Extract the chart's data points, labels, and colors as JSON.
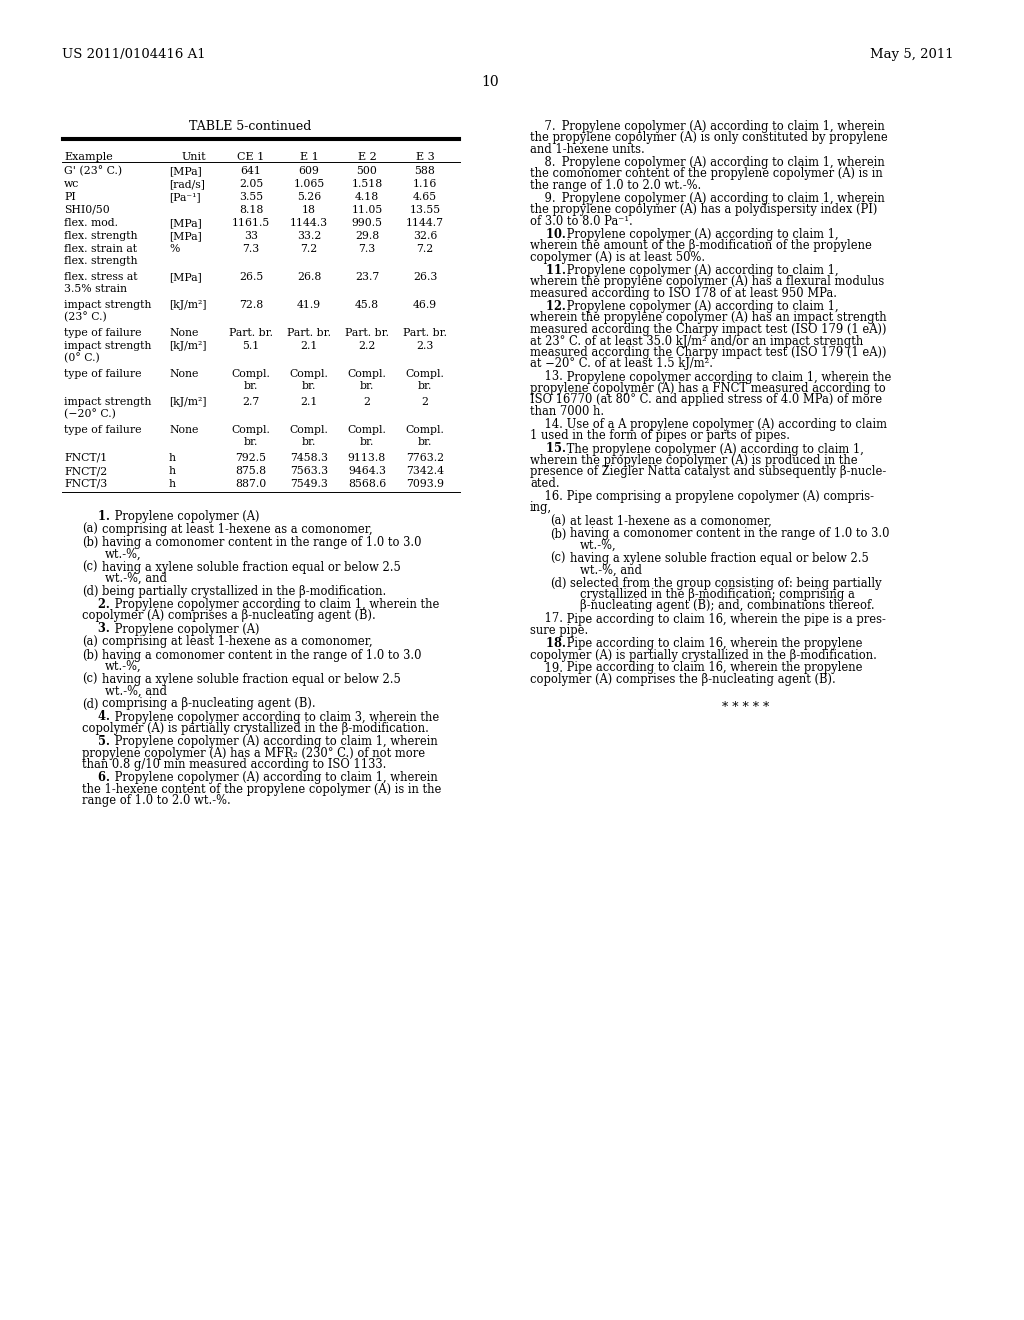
{
  "header_left": "US 2011/0104416 A1",
  "header_right": "May 5, 2011",
  "page_number": "10",
  "background_color": "#ffffff",
  "text_color": "#000000",
  "table_title": "TABLE 5-continued",
  "table_headers": [
    "Example",
    "Unit",
    "CE 1",
    "E 1",
    "E 2",
    "E 3"
  ],
  "table_rows": [
    [
      "G' (23° C.)",
      "[MPa]",
      "641",
      "609",
      "500",
      "588"
    ],
    [
      "wc",
      "[rad/s]",
      "2.05",
      "1.065",
      "1.518",
      "1.16"
    ],
    [
      "PI",
      "[Pa⁻¹]",
      "3.55",
      "5.26",
      "4.18",
      "4.65"
    ],
    [
      "SHI0/50",
      "",
      "8.18",
      "18",
      "11.05",
      "13.55"
    ],
    [
      "flex. mod.",
      "[MPa]",
      "1161.5",
      "1144.3",
      "990.5",
      "1144.7"
    ],
    [
      "flex. strength",
      "[MPa]",
      "33",
      "33.2",
      "29.8",
      "32.6"
    ],
    [
      "flex. strain at\nflex. strength",
      "%",
      "7.3",
      "7.2",
      "7.3",
      "7.2"
    ],
    [
      "flex. stress at\n3.5% strain",
      "[MPa]",
      "26.5",
      "26.8",
      "23.7",
      "26.3"
    ],
    [
      "impact strength\n(23° C.)",
      "[kJ/m²]",
      "72.8",
      "41.9",
      "45.8",
      "46.9"
    ],
    [
      "type of failure",
      "None",
      "Part. br.",
      "Part. br.",
      "Part. br.",
      "Part. br."
    ],
    [
      "impact strength\n(0° C.)",
      "[kJ/m²]",
      "5.1",
      "2.1",
      "2.2",
      "2.3"
    ],
    [
      "type of failure",
      "None",
      "Compl.\nbr.",
      "Compl.\nbr.",
      "Compl.\nbr.",
      "Compl.\nbr."
    ],
    [
      "impact strength\n(−20° C.)",
      "[kJ/m²]",
      "2.7",
      "2.1",
      "2",
      "2"
    ],
    [
      "type of failure",
      "None",
      "Compl.\nbr.",
      "Compl.\nbr.",
      "Compl.\nbr.",
      "Compl.\nbr."
    ],
    [
      "FNCT/1",
      "h",
      "792.5",
      "7458.3",
      "9113.8",
      "7763.2"
    ],
    [
      "FNCT/2",
      "h",
      "875.8",
      "7563.3",
      "9464.3",
      "7342.4"
    ],
    [
      "FNCT/3",
      "h",
      "887.0",
      "7549.3",
      "8568.6",
      "7093.9"
    ]
  ],
  "left_claims": [
    {
      "type": "claim",
      "number": "1",
      "bold_number": true,
      "text": "Propylene copolymer (A)"
    },
    {
      "type": "subitem",
      "label": "(a)",
      "text": "comprising at least 1-hexene as a comonomer,"
    },
    {
      "type": "subitem",
      "label": "(b)",
      "text": "having a comonomer content in the range of 1.0 to 3.0\n    wt.-%,"
    },
    {
      "type": "subitem",
      "label": "(c)",
      "text": "having a xylene soluble fraction equal or below 2.5\n    wt.-%, and"
    },
    {
      "type": "subitem",
      "label": "(d)",
      "text": "being partially crystallized in the β-modification."
    },
    {
      "type": "claim",
      "number": "2",
      "bold_number": true,
      "text": "Propylene copolymer according to claim 1, wherein the\ncopolymer (A) comprises a β-nucleating agent (B)."
    },
    {
      "type": "claim",
      "number": "3",
      "bold_number": true,
      "text": "Propylene copolymer (A)"
    },
    {
      "type": "subitem",
      "label": "(a)",
      "text": "comprising at least 1-hexene as a comonomer,"
    },
    {
      "type": "subitem",
      "label": "(b)",
      "text": "having a comonomer content in the range of 1.0 to 3.0\n    wt.-%,"
    },
    {
      "type": "subitem",
      "label": "(c)",
      "text": "having a xylene soluble fraction equal or below 2.5\n    wt.-%, and"
    },
    {
      "type": "subitem",
      "label": "(d)",
      "text": "comprising a β-nucleating agent (B)."
    },
    {
      "type": "claim_cont",
      "number": "4",
      "bold_number": true,
      "text": "Propylene copolymer according to claim 3, wherein the\ncopolymer (A) is partially crystallized in the β-modification."
    },
    {
      "type": "claim_cont",
      "number": "5",
      "bold_number": true,
      "text": "Propylene copolymer (A) according to claim 1, wherein\npropylene copolymer (A) has a MFR₂ (230° C.) of not more\nthan 0.8 g/10 min measured according to ISO 1133."
    },
    {
      "type": "claim_cont",
      "number": "6",
      "bold_number": true,
      "text": "Propylene copolymer (A) according to claim 1, wherein\nthe 1-hexene content of the propylene copolymer (A) is in the\nrange of 1.0 to 2.0 wt.-%."
    }
  ],
  "right_claims": [
    {
      "number": "7",
      "bold_number": false,
      "text": "Propylene copolymer (A) according to claim 1, wherein\nthe propylene copolymer (A) is only constituted by propylene\nand 1-hexene units."
    },
    {
      "number": "8",
      "bold_number": false,
      "text": "Propylene copolymer (A) according to claim 1, wherein\nthe comonomer content of the propylene copolymer (A) is in\nthe range of 1.0 to 2.0 wt.-%."
    },
    {
      "number": "9",
      "bold_number": false,
      "text": "Propylene copolymer (A) according to claim 1, wherein\nthe propylene copolymer (A) has a polydispersity index (PI)\nof 3.0 to 8.0 Pa⁻¹."
    },
    {
      "number": "10",
      "bold_number": true,
      "text": "Propylene copolymer (A) according to claim 1,\nwherein the amount of the β-modification of the propylene\ncopolymer (A) is at least 50%."
    },
    {
      "number": "11",
      "bold_number": true,
      "text": "Propylene copolymer (A) according to claim 1,\nwherein the propylene copolymer (A) has a flexural modulus\nmeasured according to ISO 178 of at least 950 MPa."
    },
    {
      "number": "12",
      "bold_number": true,
      "text": "Propylene copolymer (A) according to claim 1,\nwherein the propylene copolymer (A) has an impact strength\nmeasured according the Charpy impact test (ISO 179 (1 eA))\nat 23° C. of at least 35.0 kJ/m² and/or an impact strength\nmeasured according the Charpy impact test (ISO 179 (1 eA))\nat −20° C. of at least 1.5 kJ/m²."
    },
    {
      "number": "13",
      "bold_number": false,
      "text": "Propylene copolymer according to claim 1, wherein the\npropylene copolymer (A) has a FNCT measured according to\nISO 16770 (at 80° C. and applied stress of 4.0 MPa) of more\nthan 7000 h."
    },
    {
      "number": "14",
      "bold_number": false,
      "text": "Use of a A propylene copolymer (A) according to claim\n1 used in the form of pipes or parts of pipes."
    },
    {
      "number": "15",
      "bold_number": true,
      "text": "The propylene copolymer (A) according to claim 1,\nwherein the propylene copolymer (A) is produced in the\npresence of Ziegler Natta catalyst and subsequently β-nucle-\nated."
    },
    {
      "number": "16",
      "bold_number": false,
      "text": "Pipe comprising a propylene copolymer (A) compris-\ning,"
    },
    {
      "type": "subitem",
      "label": "(a)",
      "text": "at least 1-hexene as a comonomer,"
    },
    {
      "type": "subitem",
      "label": "(b)",
      "text": "having a comonomer content in the range of 1.0 to 3.0\n    wt.-%,"
    },
    {
      "type": "subitem",
      "label": "(c)",
      "text": "having a xylene soluble fraction equal or below 2.5\n    wt.-%, and"
    },
    {
      "type": "subitem",
      "label": "(d)",
      "text": "selected from the group consisting of: being partially\n    crystallized in the β-modification; comprising a\n    β-nucleating agent (B); and, combinations thereof."
    },
    {
      "number": "17",
      "bold_number": false,
      "text": "Pipe according to claim 16, wherein the pipe is a pres-\nsure pipe."
    },
    {
      "number": "18",
      "bold_number": true,
      "text": "Pipe according to claim 16, wherein the propylene\ncopolymer (A) is partially crystallized in the β-modification."
    },
    {
      "number": "19",
      "bold_number": false,
      "text": "Pipe according to claim 16, wherein the propylene\ncopolymer (A) comprises the β-nucleating agent (B)."
    }
  ],
  "asterisks": "* * * * *"
}
